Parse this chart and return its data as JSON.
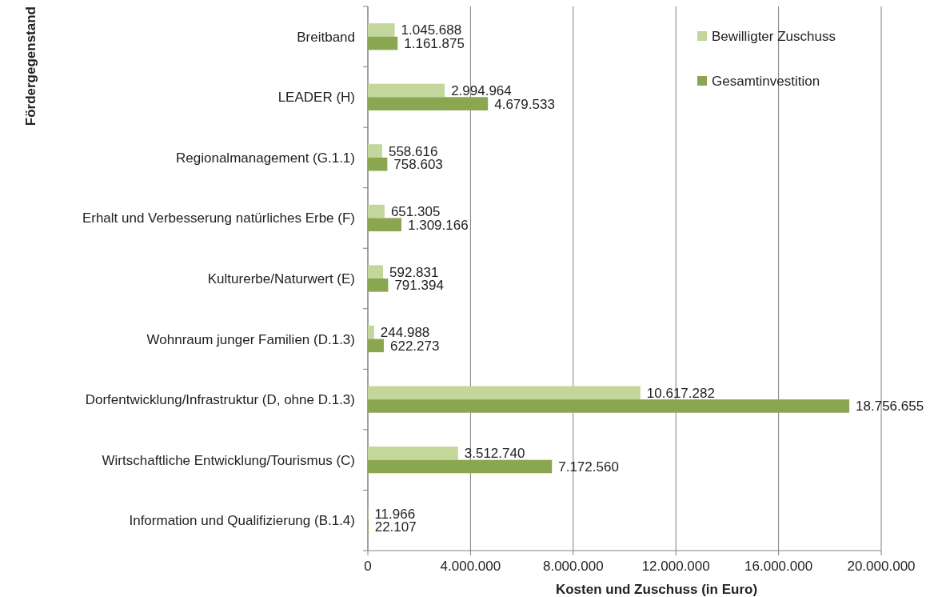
{
  "chart_data": {
    "type": "bar",
    "orientation": "horizontal",
    "xlabel": "Kosten und Zuschuss  (in Euro)",
    "ylabel": "Fördergegenstand",
    "categories": [
      "Breitband",
      "LEADER (H)",
      "Regionalmanagement (G.1.1)",
      "Erhalt und  Verbesserung natürliches Erbe (F)",
      "Kulturerbe/Naturwert (E)",
      "Wohnraum junger Familien (D.1.3)",
      "Dorfentwicklung/Infrastruktur (D, ohne D.1.3)",
      "Wirtschaftliche Entwicklung/Tourismus (C)",
      "Information und Qualifizierung (B.1.4)"
    ],
    "series": [
      {
        "name": "Bewilligter Zuschuss",
        "color": "#c3d69b",
        "values": [
          1045688,
          2994964,
          558616,
          651305,
          592831,
          244988,
          10617282,
          3512740,
          11966
        ],
        "value_labels": [
          "1.045.688",
          "2.994.964",
          "558.616",
          "651.305",
          "592.831",
          "244.988",
          "10.617.282",
          "3.512.740",
          "11.966"
        ]
      },
      {
        "name": "Gesamtinvestition",
        "color": "#8ba650",
        "values": [
          1161875,
          4679533,
          758603,
          1309166,
          791394,
          622273,
          18756655,
          7172560,
          22107
        ],
        "value_labels": [
          "1.161.875",
          "4.679.533",
          "758.603",
          "1.309.166",
          "791.394",
          "622.273",
          "18.756.655",
          "7.172.560",
          "22.107"
        ]
      }
    ],
    "xlim": [
      0,
      20000000
    ],
    "xticks": [
      0,
      {
        "value": 4000000,
        "label": "4.000.000"
      },
      {
        "value": 8000000,
        "label": "8.000.000"
      },
      {
        "value": 12000000,
        "label": "12.000.000"
      },
      {
        "value": 16000000,
        "label": "16.000.000"
      },
      {
        "value": 20000000,
        "label": "20.000.000"
      }
    ],
    "grid": "x",
    "legend": "top right"
  }
}
